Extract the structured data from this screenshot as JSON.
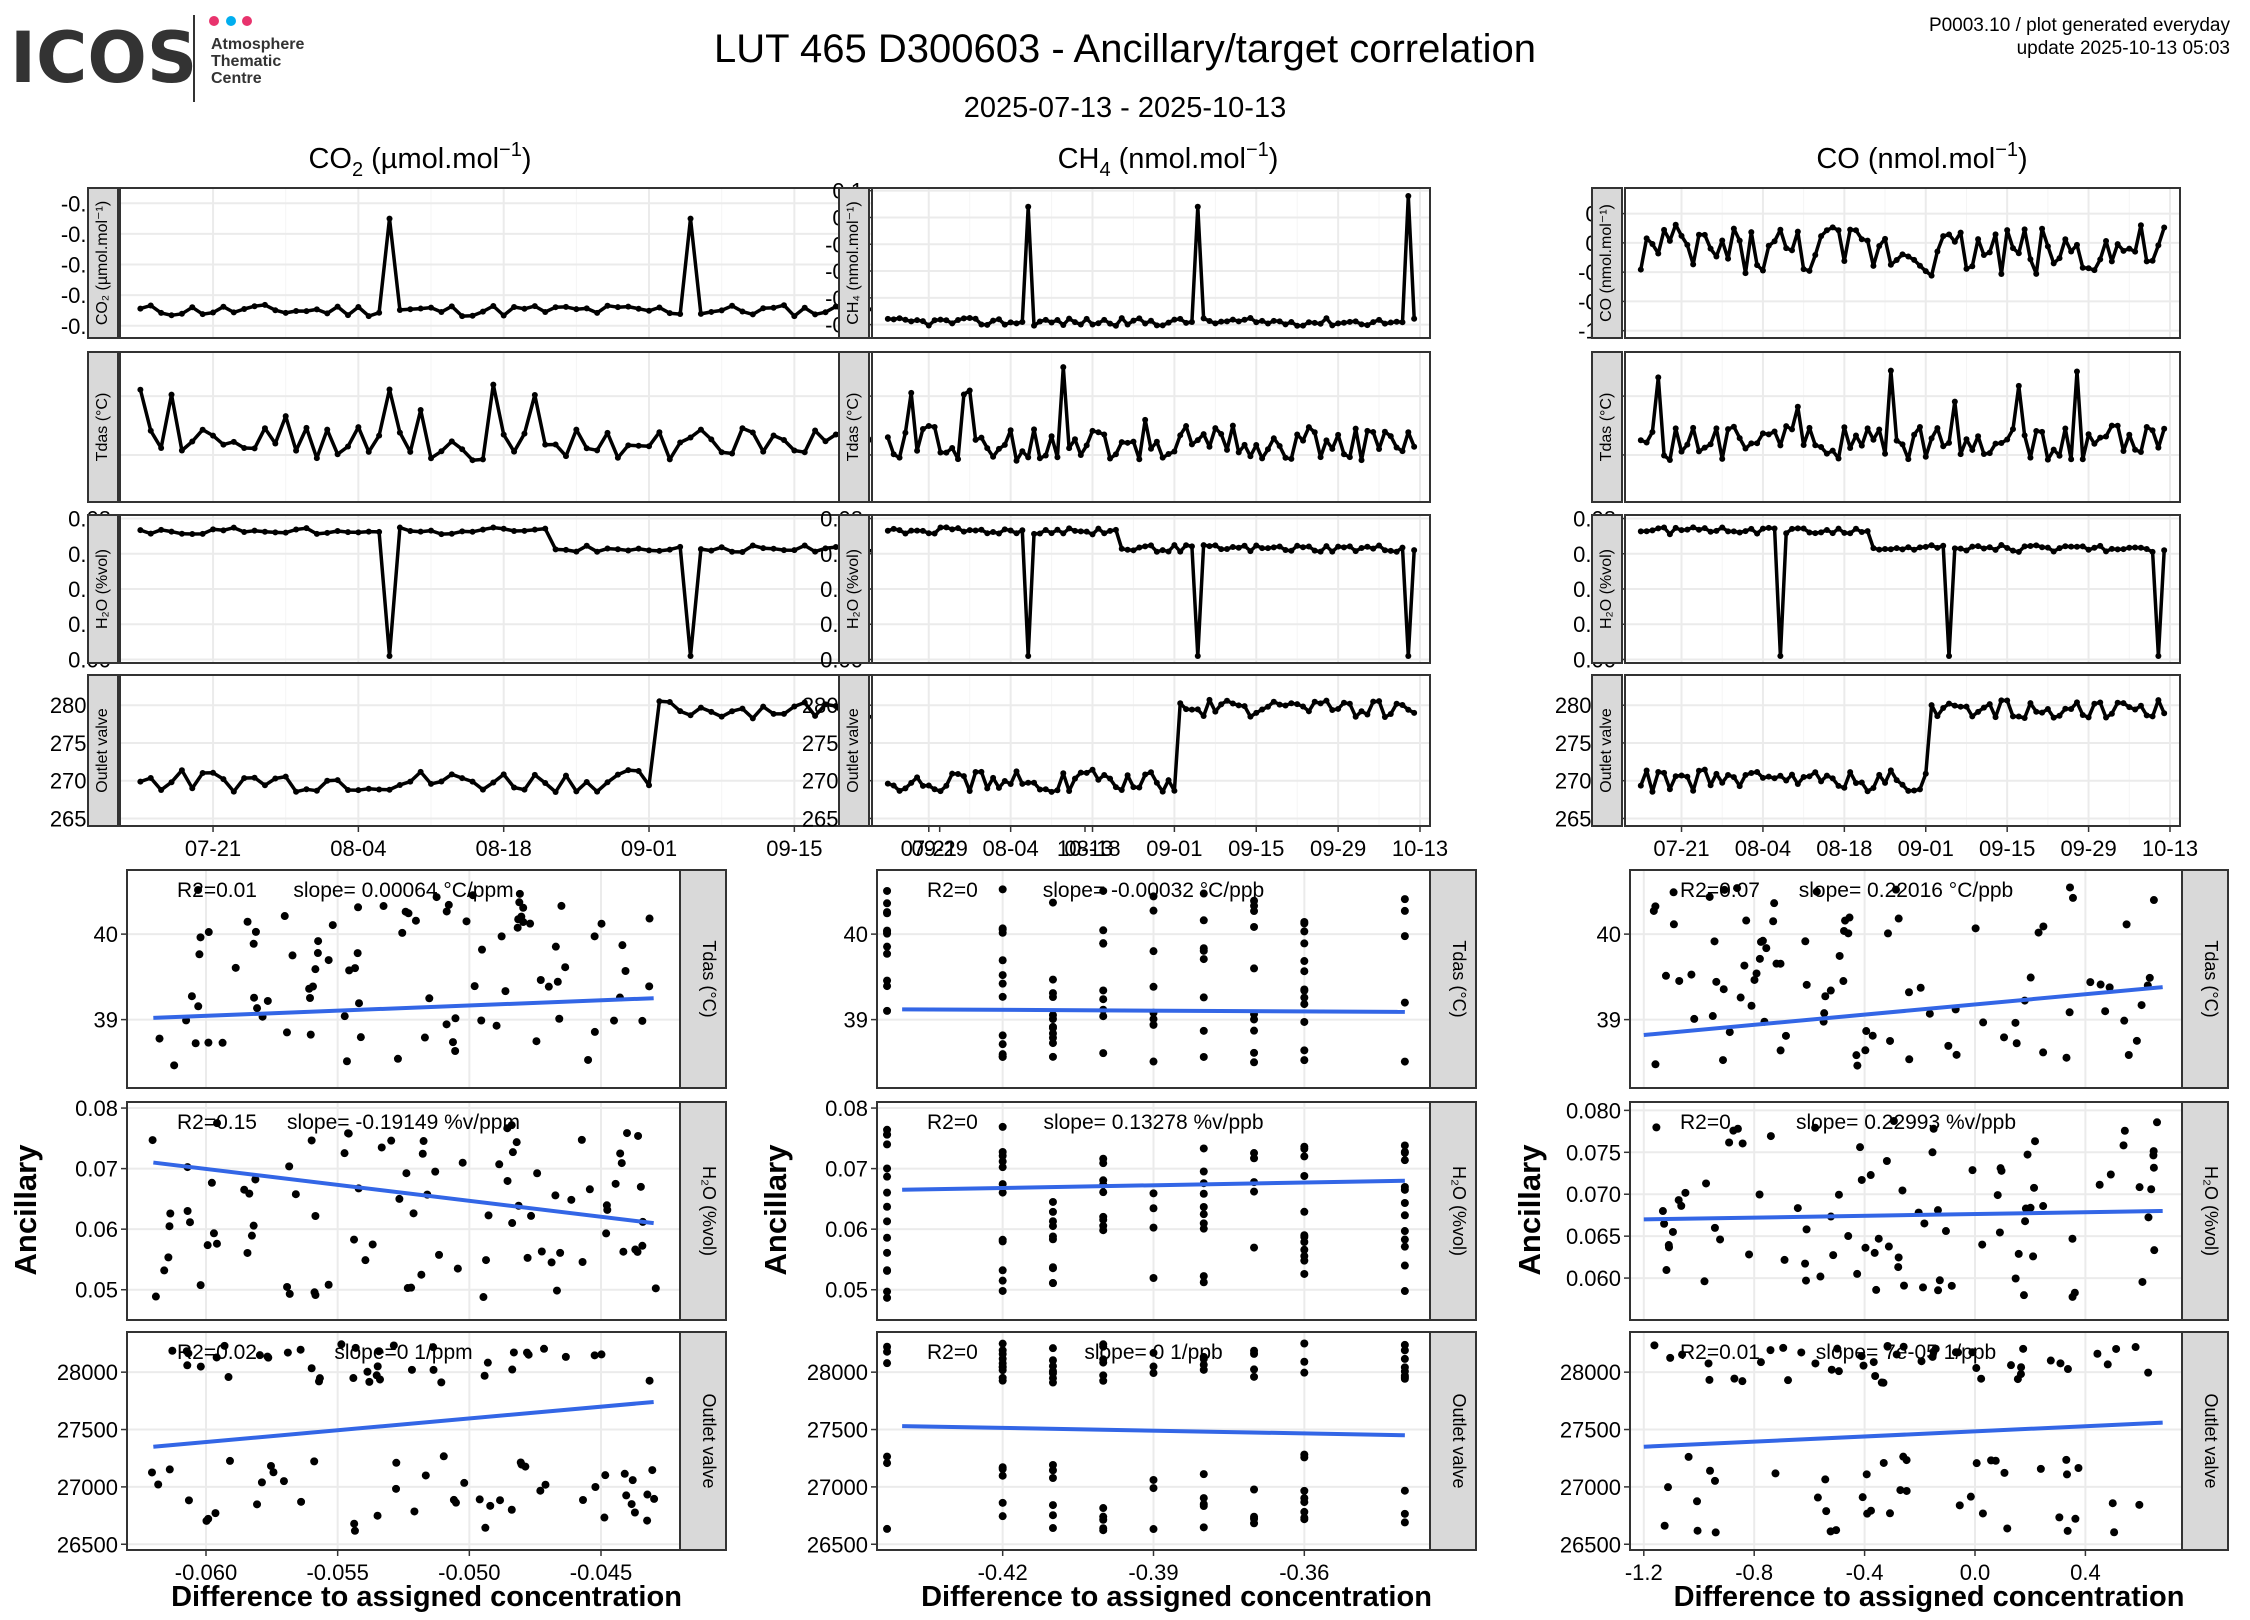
{
  "header": {
    "logo_text": "ICOS",
    "logo_subtitle": [
      "Atmosphere",
      "Thematic",
      "Centre"
    ],
    "logo_dot_colors": [
      "#e8336d",
      "#00aeef",
      "#e8336d"
    ],
    "title": "LUT 465 D300603 - Ancillary/target correlation",
    "subtitle": "2025-07-13 - 2025-10-13",
    "meta_line1": "P0003.10 / plot generated everyday",
    "meta_line2": "update  2025-10-13 05:03"
  },
  "columns": [
    {
      "base": "CO",
      "sub": "2",
      "unit": " (µmol.mol",
      "sup": "−1",
      "close": ")"
    },
    {
      "base": "CH",
      "sub": "4",
      "unit": " (nmol.mol",
      "sup": "−1",
      "close": ")"
    },
    {
      "base": "CO",
      "sub": "",
      "unit": " (nmol.mol",
      "sup": "−1",
      "close": ")"
    }
  ],
  "colors": {
    "line": "#000000",
    "fit": "#3366e6",
    "panel_border": "#333333",
    "strip": "#d9d9d9",
    "grid_major": "#ebebeb",
    "grid_minor": "#f5f5f5"
  },
  "time_axis": {
    "start": "2025-07-13",
    "end": "2025-10-13",
    "tick_labels": [
      "07-21",
      "08-04",
      "08-18",
      "09-01",
      "09-15",
      "09-29",
      "10-13"
    ],
    "tick_days": [
      8,
      22,
      36,
      50,
      64,
      78,
      92
    ]
  },
  "ts_strips": [
    [
      "CO₂ (µmol.mol⁻¹)",
      "Tdas (°C)",
      "H₂O (%vol)",
      "Outlet valve"
    ],
    [
      "CH₄ (nmol.mol⁻¹)",
      "Tdas (°C)",
      "H₂O (%vol)",
      "Outlet valve"
    ],
    [
      "CO (nmol.mol⁻¹)",
      "Tdas (°C)",
      "H₂O (%vol)",
      "Outlet valve"
    ]
  ],
  "scatter_strips": [
    "Tdas (°C)",
    "H₂O (%vol)",
    "Outlet valve"
  ],
  "y_axis_title": "Ancillary",
  "x_axis_title": "Difference to assigned concentration",
  "chart_data": [
    {
      "type": "line",
      "title": "CO₂ (µmol.mol⁻¹)",
      "ylabel": "CO₂ (µmol.mol⁻¹)",
      "ylim": [
        -0.064,
        -0.015
      ],
      "yticks": [
        -0.06,
        -0.05,
        -0.04,
        -0.03,
        -0.02
      ],
      "ytick_labels": [
        "-0.06",
        "-0.05",
        "-0.04",
        "-0.03",
        "-0.02"
      ],
      "base": -0.055,
      "noise": 0.002,
      "spikes": [
        [
          24,
          -0.025
        ],
        [
          53,
          -0.025
        ],
        [
          89,
          -0.017
        ]
      ]
    },
    {
      "type": "line",
      "title": "Tdas (°C)",
      "ylabel": "Tdas (°C)",
      "ylim": [
        38.2,
        40.75
      ],
      "yticks": [
        39,
        40
      ],
      "ytick_labels": [
        "39",
        "40"
      ],
      "base": 39.0,
      "noise": 0.5
    },
    {
      "type": "line",
      "title": "H₂O (%vol)",
      "ylabel": "H₂O (%vol)",
      "ylim": [
        -0.002,
        0.082
      ],
      "yticks": [
        0.0,
        0.02,
        0.04,
        0.06,
        0.08
      ],
      "ytick_labels": [
        "0.00",
        "0.02",
        "0.04",
        "0.06",
        "0.08"
      ],
      "base": 0.07,
      "noise": 0.002,
      "spikes": [
        [
          24,
          0.002
        ],
        [
          53,
          0.002
        ],
        [
          89,
          0.002
        ]
      ]
    },
    {
      "type": "line",
      "title": "Outlet valve",
      "ylabel": "Outlet valve",
      "ylim": [
        26400,
        28400
      ],
      "yticks": [
        26500,
        27000,
        27500,
        28000
      ],
      "ytick_labels": [
        "26500",
        "27000",
        "27500",
        "28000"
      ],
      "base": 27000,
      "noise": 150
    },
    {
      "type": "line",
      "title": "CH₄ (nmol.mol⁻¹)",
      "ylabel": "CH₄ (nmol.mol⁻¹)",
      "ylim": [
        -0.45,
        0.11
      ],
      "yticks": [
        -0.4,
        -0.3,
        -0.2,
        -0.1,
        0.0,
        0.1
      ],
      "ytick_labels": [
        "-0.4",
        "-0.3",
        "-0.2",
        "-0.1",
        "0.0",
        "0.1"
      ],
      "base": -0.39,
      "noise": 0.015,
      "spikes": [
        [
          24,
          0.04
        ],
        [
          53,
          0.04
        ],
        [
          89,
          0.08
        ]
      ]
    },
    {
      "type": "line",
      "title": "CO (nmol.mol⁻¹)",
      "ylabel": "CO (nmol.mol⁻¹)",
      "ylim": [
        -1.3,
        0.75
      ],
      "yticks": [
        -1.2,
        -0.8,
        -0.4,
        0.0,
        0.4
      ],
      "ytick_labels": [
        "-1.2",
        "-0.8",
        "-0.4",
        "0.0",
        "0.4"
      ],
      "base": -0.1,
      "noise": 0.35
    },
    {
      "type": "scatter",
      "title": "CO₂ vs Tdas",
      "annotations": [
        "R2=0.01",
        "slope= 0.00064 °C/ppm"
      ],
      "xlim": [
        -0.063,
        -0.042
      ],
      "xticks": [
        -0.06,
        -0.055,
        -0.05,
        -0.045
      ],
      "xtick_labels": [
        "-0.060",
        "-0.055",
        "-0.050",
        "-0.045"
      ],
      "ylim": [
        38.2,
        40.75
      ],
      "yticks": [
        39,
        40
      ],
      "ytick_labels": [
        "39",
        "40"
      ],
      "fit": [
        [
          -0.062,
          39.02
        ],
        [
          -0.043,
          39.25
        ]
      ]
    },
    {
      "type": "scatter",
      "title": "CO₂ vs H₂O",
      "annotations": [
        "R2=0.15",
        "slope= -0.19149 %v/ppm"
      ],
      "xlim": [
        -0.063,
        -0.042
      ],
      "xticks": [
        -0.06,
        -0.055,
        -0.05,
        -0.045
      ],
      "xtick_labels": [
        "-0.060",
        "-0.055",
        "-0.050",
        "-0.045"
      ],
      "ylim": [
        0.045,
        0.081
      ],
      "yticks": [
        0.05,
        0.06,
        0.07,
        0.08
      ],
      "ytick_labels": [
        "0.05",
        "0.06",
        "0.07",
        "0.08"
      ],
      "fit": [
        [
          -0.062,
          0.071
        ],
        [
          -0.043,
          0.061
        ]
      ]
    },
    {
      "type": "scatter",
      "title": "CO₂ vs Outlet valve",
      "annotations": [
        "R2=0.02",
        "slope=0 1/ppm"
      ],
      "xlim": [
        -0.063,
        -0.042
      ],
      "xticks": [
        -0.06,
        -0.055,
        -0.05,
        -0.045
      ],
      "xtick_labels": [
        "-0.060",
        "-0.055",
        "-0.050",
        "-0.045"
      ],
      "ylim": [
        26450,
        28350
      ],
      "yticks": [
        26500,
        27000,
        27500,
        28000
      ],
      "ytick_labels": [
        "26500",
        "27000",
        "27500",
        "28000"
      ],
      "fit": [
        [
          -0.062,
          27350
        ],
        [
          -0.043,
          27740
        ]
      ]
    },
    {
      "type": "scatter",
      "title": "CH₄ vs Tdas",
      "annotations": [
        "R2=0",
        "slope= -0.00032 °C/ppb"
      ],
      "xlim": [
        -0.445,
        -0.335
      ],
      "xticks": [
        -0.42,
        -0.39,
        -0.36
      ],
      "xtick_labels": [
        "-0.42",
        "-0.39",
        "-0.36"
      ],
      "ylim": [
        38.2,
        40.75
      ],
      "yticks": [
        39,
        40
      ],
      "ytick_labels": [
        "39",
        "40"
      ],
      "fit": [
        [
          -0.44,
          39.12
        ],
        [
          -0.34,
          39.09
        ]
      ]
    },
    {
      "type": "scatter",
      "title": "CH₄ vs H₂O",
      "annotations": [
        "R2=0",
        "slope= 0.13278 %v/ppb"
      ],
      "xlim": [
        -0.445,
        -0.335
      ],
      "xticks": [
        -0.42,
        -0.39,
        -0.36
      ],
      "xtick_labels": [
        "-0.42",
        "-0.39",
        "-0.36"
      ],
      "ylim": [
        0.045,
        0.081
      ],
      "yticks": [
        0.05,
        0.06,
        0.07,
        0.08
      ],
      "ytick_labels": [
        "0.05",
        "0.06",
        "0.07",
        "0.08"
      ],
      "fit": [
        [
          -0.44,
          0.0665
        ],
        [
          -0.34,
          0.068
        ]
      ]
    },
    {
      "type": "scatter",
      "title": "CH₄ vs Outlet valve",
      "annotations": [
        "R2=0",
        "slope= 0 1/ppb"
      ],
      "xlim": [
        -0.445,
        -0.335
      ],
      "xticks": [
        -0.42,
        -0.39,
        -0.36
      ],
      "xtick_labels": [
        "-0.42",
        "-0.39",
        "-0.36"
      ],
      "ylim": [
        26450,
        28350
      ],
      "yticks": [
        26500,
        27000,
        27500,
        28000
      ],
      "ytick_labels": [
        "26500",
        "27000",
        "27500",
        "28000"
      ],
      "fit": [
        [
          -0.44,
          27530
        ],
        [
          -0.34,
          27450
        ]
      ]
    },
    {
      "type": "scatter",
      "title": "CO vs Tdas",
      "annotations": [
        "R2=0.07",
        "slope= 0.22016 °C/ppb"
      ],
      "xlim": [
        -1.25,
        0.75
      ],
      "xticks": [
        -1.2,
        -0.8,
        -0.4,
        0.0,
        0.4
      ],
      "xtick_labels": [
        "-1.2",
        "-0.8",
        "-0.4",
        "0.0",
        "0.4"
      ],
      "ylim": [
        38.2,
        40.75
      ],
      "yticks": [
        39,
        40
      ],
      "ytick_labels": [
        "39",
        "40"
      ],
      "fit": [
        [
          -1.2,
          38.82
        ],
        [
          0.68,
          39.38
        ]
      ]
    },
    {
      "type": "scatter",
      "title": "CO vs H₂O",
      "annotations": [
        "R2=0",
        "slope= 0.22993 %v/ppb"
      ],
      "xlim": [
        -1.25,
        0.75
      ],
      "xticks": [
        -1.2,
        -0.8,
        -0.4,
        0.0,
        0.4
      ],
      "xtick_labels": [
        "-1.2",
        "-0.8",
        "-0.4",
        "0.0",
        "0.4"
      ],
      "ylim": [
        0.055,
        0.081
      ],
      "yticks": [
        0.06,
        0.065,
        0.07,
        0.075,
        0.08
      ],
      "ytick_labels": [
        "0.060",
        "0.065",
        "0.070",
        "0.075",
        "0.080"
      ],
      "fit": [
        [
          -1.2,
          0.067
        ],
        [
          0.68,
          0.068
        ]
      ]
    },
    {
      "type": "scatter",
      "title": "CO vs Outlet valve",
      "annotations": [
        "R2=0.01",
        "slope= 7e-05 1/ppb"
      ],
      "xlim": [
        -1.25,
        0.75
      ],
      "xticks": [
        -1.2,
        -0.8,
        -0.4,
        0.0,
        0.4
      ],
      "xtick_labels": [
        "-1.2",
        "-0.8",
        "-0.4",
        "0.0",
        "0.4"
      ],
      "ylim": [
        26450,
        28350
      ],
      "yticks": [
        26500,
        27000,
        27500,
        28000
      ],
      "ytick_labels": [
        "26500",
        "27000",
        "27500",
        "28000"
      ],
      "fit": [
        [
          -1.2,
          27350
        ],
        [
          0.68,
          27560
        ]
      ]
    }
  ]
}
